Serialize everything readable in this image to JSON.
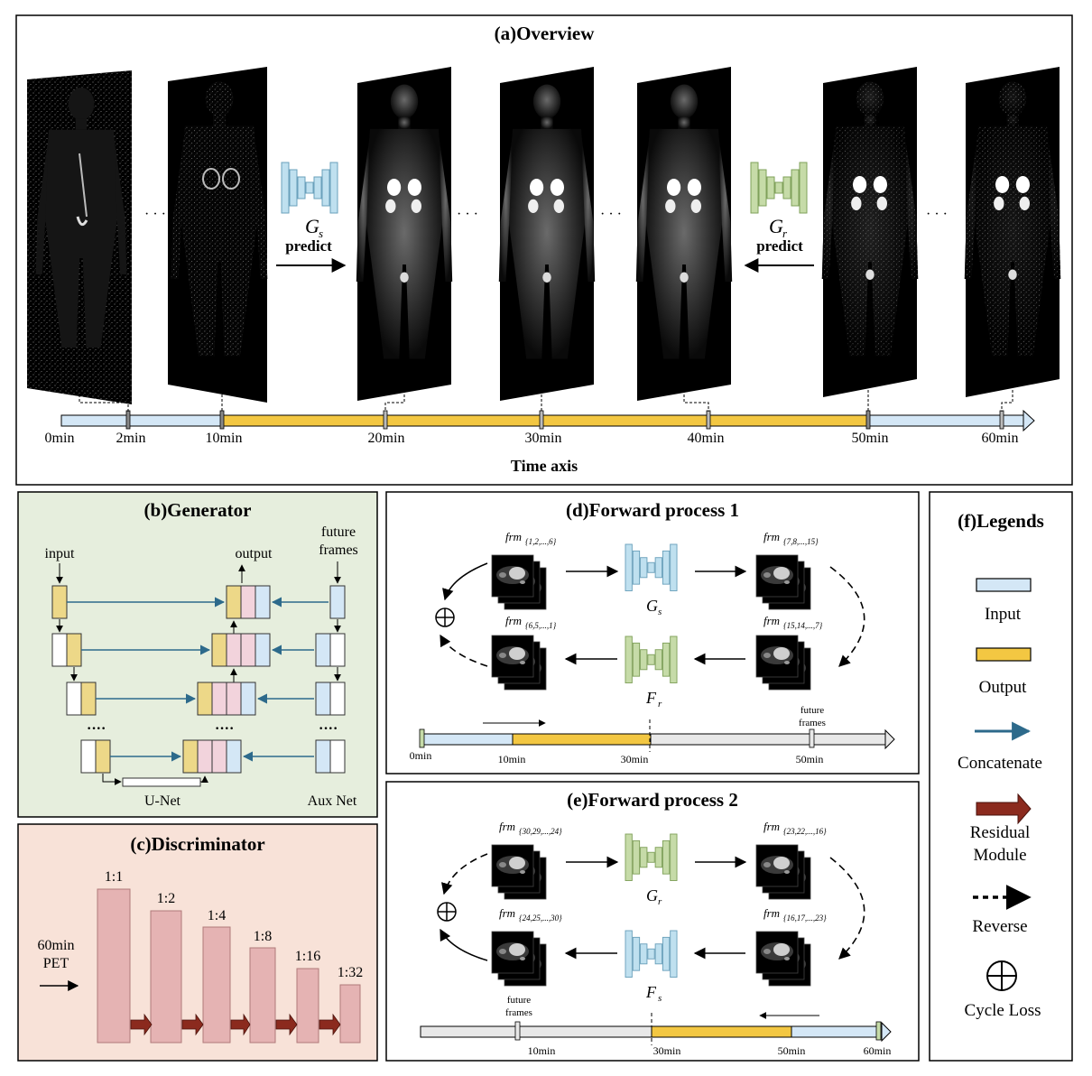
{
  "overview": {
    "title": "(a)Overview",
    "time_axis_label": "Time axis",
    "time_ticks": [
      "0min",
      "2min",
      "10min",
      "20min",
      "30min",
      "40min",
      "50min",
      "60min"
    ],
    "gs_label": "G",
    "gs_sub": "s",
    "gr_label": "G",
    "gr_sub": "r",
    "predict_left": "predict",
    "predict_right": "predict",
    "ellipsis": "· · ·"
  },
  "generator": {
    "title": "(b)Generator",
    "input_label": "input",
    "output_label": "output",
    "future_label_1": "future",
    "future_label_2": "frames",
    "unet_label": "U-Net",
    "aux_label": "Aux Net",
    "dots": "····"
  },
  "discriminator": {
    "title": "(c)Discriminator",
    "input_label_1": "60min",
    "input_label_2": "PET",
    "scales": [
      "1:1",
      "1:2",
      "1:4",
      "1:8",
      "1:16",
      "1:32"
    ]
  },
  "forward1": {
    "title": "(d)Forward process 1",
    "frm_top_left": "{1,2,...,6}",
    "frm_top_right": "{7,8,...,15}",
    "frm_bottom_left": "{6,5,...,1}",
    "frm_bottom_right": "{15,14,...,7}",
    "frm_prefix": "frm",
    "top_net": "G",
    "top_net_sub": "s",
    "bottom_net": "F",
    "bottom_net_sub": "r",
    "ticks": [
      "0min",
      "10min",
      "30min",
      "50min"
    ],
    "future_1": "future",
    "future_2": "frames"
  },
  "forward2": {
    "title": "(e)Forward process 2",
    "frm_top_left": "{30,29,...,24}",
    "frm_top_right": "{23,22,...,16}",
    "frm_bottom_left": "{24,25,...,30}",
    "frm_bottom_right": "{16,17,...,23}",
    "frm_prefix": "frm",
    "top_net": "G",
    "top_net_sub": "r",
    "bottom_net": "F",
    "bottom_net_sub": "s",
    "ticks": [
      "10min",
      "30min",
      "50min",
      "60min"
    ],
    "future_1": "future",
    "future_2": "frames"
  },
  "legends": {
    "title": "(f)Legends",
    "input": "Input",
    "output": "Output",
    "concatenate": "Concatenate",
    "residual_1": "Residual",
    "residual_2": "Module",
    "reverse": "Reverse",
    "cycle": "Cycle Loss"
  },
  "colors": {
    "input_blue": "#d4e7f6",
    "output_yellow": "#f3c742",
    "gen_green_bg": "#e6eedd",
    "disc_bg": "#f8e2d8",
    "disc_bar": "#e5b3b3",
    "residual_red": "#8b2a1e",
    "concat_blue": "#2d6a8b",
    "net_blue": "#bfe0ef",
    "net_green": "#c6dba8",
    "pink": "#f2d3dc"
  }
}
